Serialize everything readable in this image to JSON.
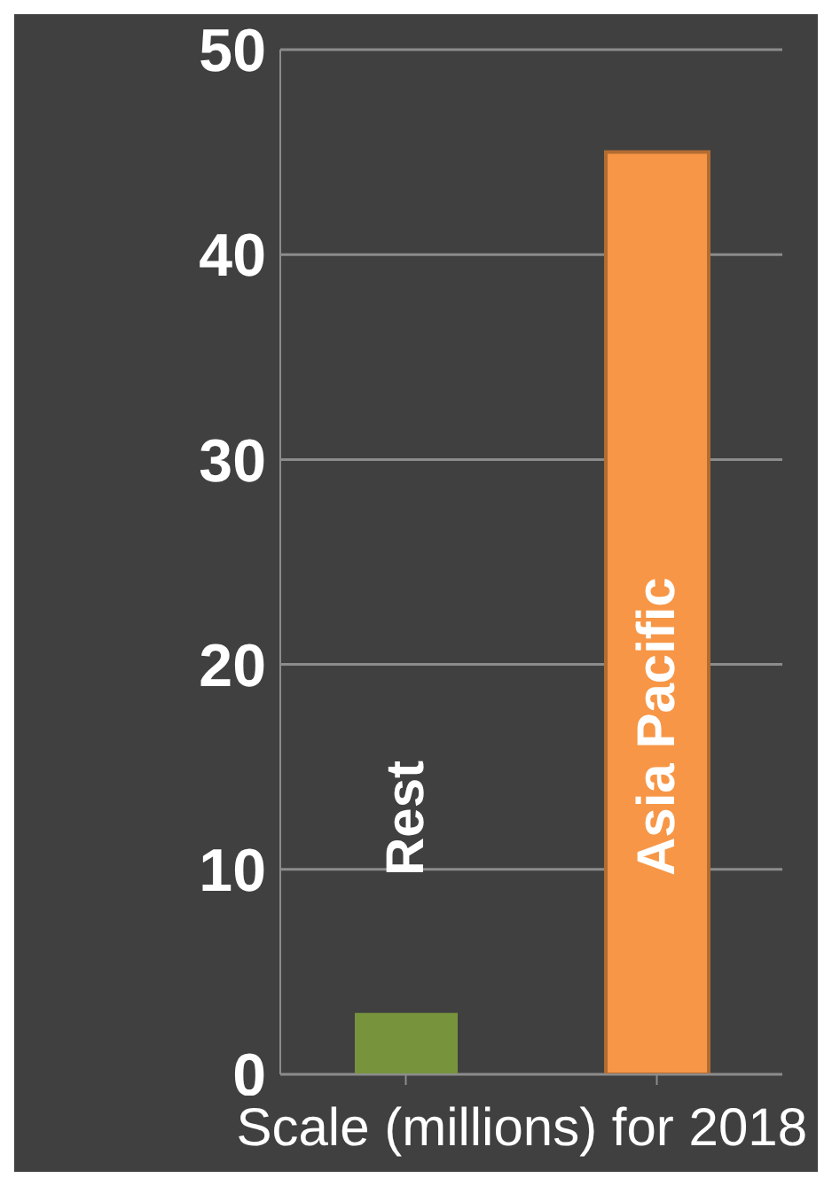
{
  "chart_data": {
    "type": "bar",
    "categories": [
      "Rest",
      "Asia Pacific"
    ],
    "values": [
      3,
      45
    ],
    "colors": [
      "#77933c",
      "#f79646"
    ],
    "ylim": [
      0,
      50
    ],
    "yticks": [
      0,
      10,
      20,
      30,
      40,
      50
    ],
    "grid": "y",
    "annotations": [
      "Scale (millions) for 2018"
    ]
  }
}
